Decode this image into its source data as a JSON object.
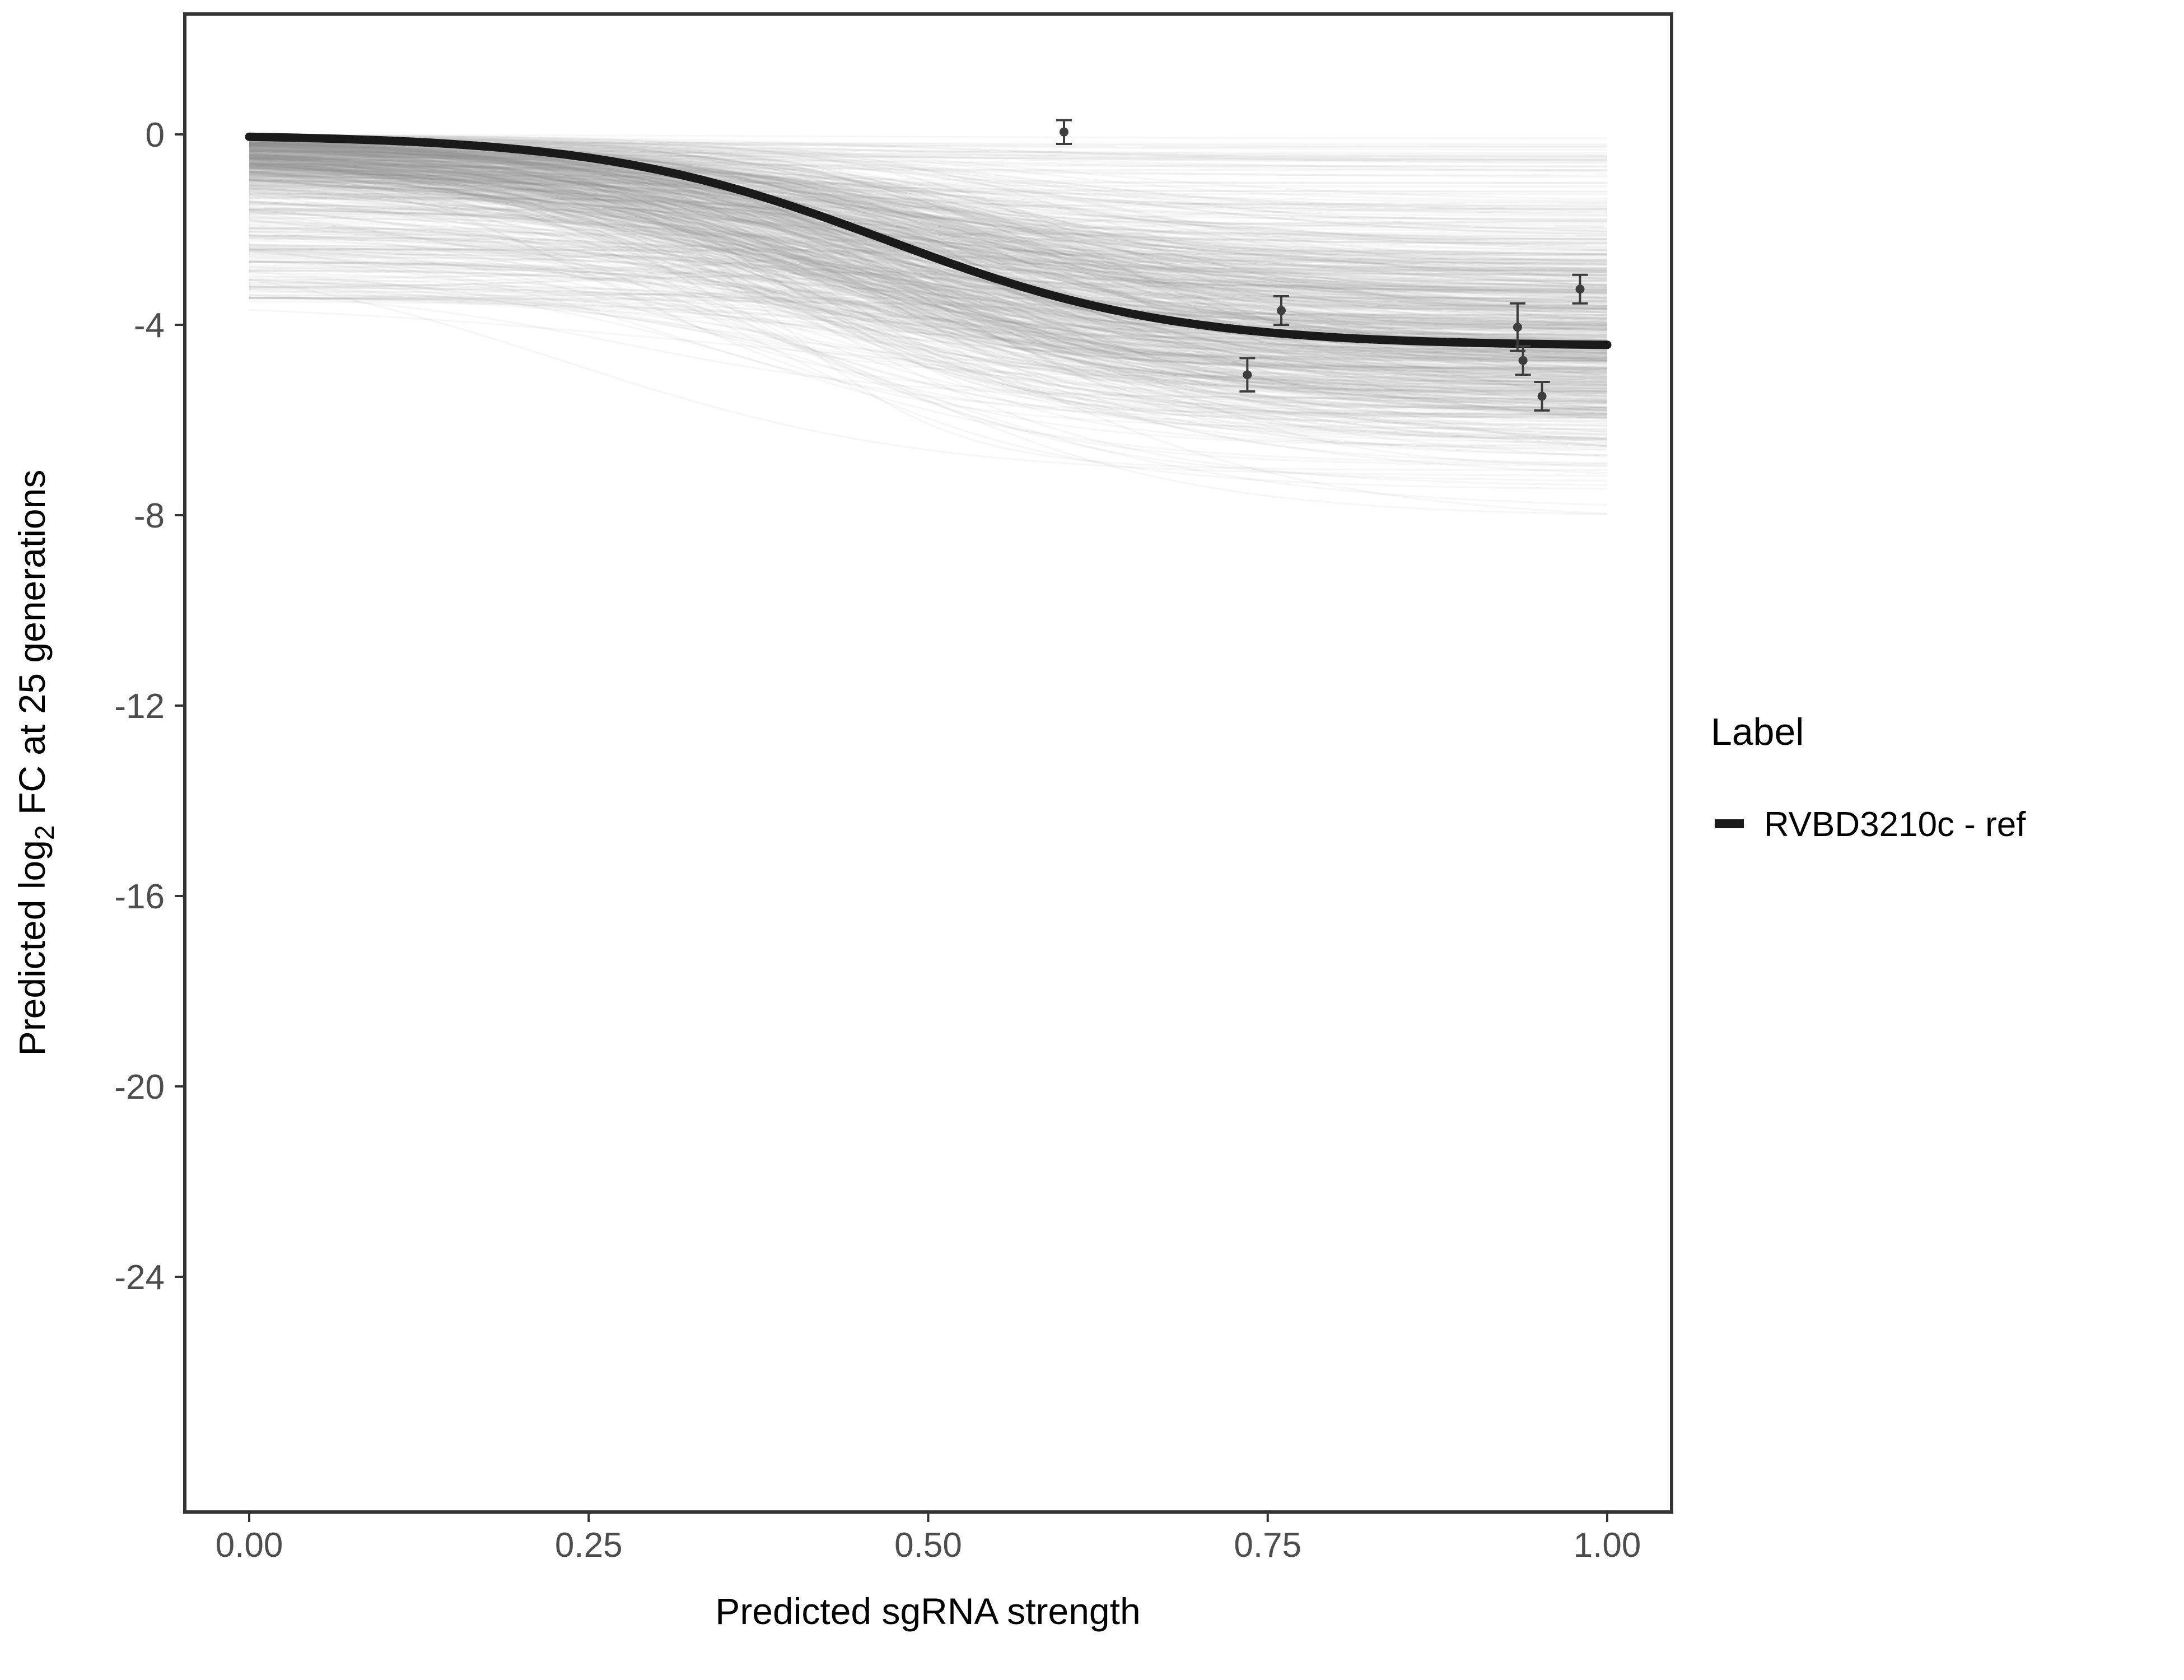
{
  "figure": {
    "background": "#ffffff"
  },
  "chart_data": {
    "type": "line",
    "title": "",
    "xlabel": "Predicted sgRNA strength",
    "ylabel": {
      "pre": "Predicted  log",
      "sub": "2",
      "post": " FC at 25 generations"
    },
    "xlim": [
      -0.047,
      1.046
    ],
    "ylim": [
      -29.0,
      2.53
    ],
    "grid": "off",
    "x_ticks": {
      "values": [
        0,
        0.25,
        0.5,
        0.75,
        1.0
      ],
      "labels": [
        "0.00",
        "0.25",
        "0.50",
        "0.75",
        "1.00"
      ]
    },
    "y_ticks": {
      "values": [
        0,
        -4,
        -8,
        -12,
        -16,
        -20,
        -24
      ],
      "labels": [
        "0",
        "-4",
        "-8",
        "-12",
        "-16",
        "-20",
        "-24"
      ]
    },
    "legend": {
      "title": "Label",
      "position": "right",
      "entries": [
        {
          "label": "RVBD3210c - ref",
          "color": "#1a1a1a"
        }
      ]
    },
    "main_curve": {
      "label": "RVBD3210c - ref",
      "model": "sigmoid",
      "y0": 0,
      "plateau": -4.45,
      "midpoint": 0.47,
      "slope": 9.5,
      "x_range": [
        0,
        1
      ]
    },
    "points": [
      {
        "x": 0.6,
        "y": 0.05,
        "se": 0.25
      },
      {
        "x": 0.735,
        "y": -5.05,
        "se": 0.35
      },
      {
        "x": 0.76,
        "y": -3.7,
        "se": 0.3
      },
      {
        "x": 0.934,
        "y": -4.05,
        "se": 0.5
      },
      {
        "x": 0.938,
        "y": -4.75,
        "se": 0.3
      },
      {
        "x": 0.952,
        "y": -5.5,
        "se": 0.3
      },
      {
        "x": 0.98,
        "y": -3.25,
        "se": 0.3
      }
    ],
    "background_curves": {
      "description": "posterior sample sigmoid curves",
      "count": 650,
      "seed": 42,
      "plateau_mean": -4.3,
      "plateau_sd": 1.3,
      "plateau_min": -8.8,
      "plateau_max": -0.15,
      "midpoint_mean": 0.46,
      "midpoint_sd": 0.08,
      "slope_mean": 8.5,
      "slope_sd": 2.5,
      "flat_fraction": 0.06,
      "color": "#8c8c8c",
      "opacity": 0.07
    },
    "colors": {
      "main_line": "#1a1a1a",
      "background_line": "#8c8c8c",
      "point": "#3d3d3d",
      "panel_border": "#333333",
      "tick": "#333333",
      "tick_text": "#4d4d4d",
      "axis_title": "#000000",
      "legend_text": "#000000"
    }
  }
}
